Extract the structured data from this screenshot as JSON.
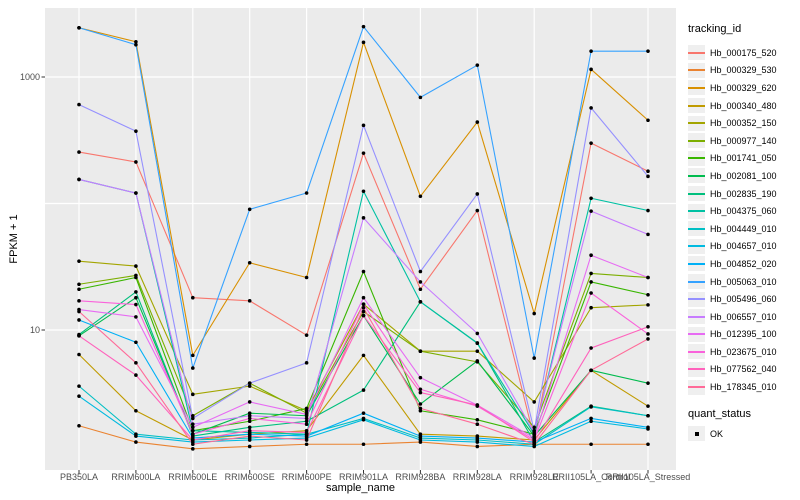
{
  "chart_data": {
    "type": "line",
    "title": "",
    "xlabel": "sample_name",
    "ylabel": "FPKM + 1",
    "y_scale": "log10",
    "y_tick_labels": [
      "1000",
      "10"
    ],
    "y_tick_values": [
      1000,
      10
    ],
    "y_gridline_values": [
      1000,
      100,
      10
    ],
    "ylim": [
      0.78,
      3500
    ],
    "grid": true,
    "legend_position": "right",
    "categories": [
      "PB350LA",
      "RRIM600LA",
      "RRIM600LE",
      "RRIM600SE",
      "RRIM600PE",
      "RRIM901LA",
      "RRIM928BA",
      "RRIM928LA",
      "RRIM928LE",
      "RRII105LA_Control",
      "RRII105LA_Stressed"
    ],
    "series": [
      {
        "name": "Hb_000175_520",
        "color": "#F8766D",
        "values": [
          255,
          213,
          18,
          17,
          9.1,
          250,
          21,
          88,
          1.4,
          300,
          180
        ]
      },
      {
        "name": "Hb_000329_530",
        "color": "#EA8331",
        "values": [
          1.75,
          1.3,
          1.15,
          1.2,
          1.25,
          1.25,
          1.3,
          1.2,
          1.25,
          1.25,
          1.25
        ]
      },
      {
        "name": "Hb_000329_620",
        "color": "#D89000",
        "values": [
          2450,
          1900,
          6.3,
          34,
          26,
          1880,
          114,
          440,
          13.5,
          1150,
          455
        ]
      },
      {
        "name": "Hb_000340_480",
        "color": "#C09B00",
        "values": [
          6.4,
          2.3,
          1.35,
          1.5,
          1.6,
          6.3,
          1.5,
          1.45,
          1.35,
          4.8,
          2.5
        ]
      },
      {
        "name": "Hb_000352_150",
        "color": "#A3A500",
        "values": [
          35,
          32,
          3.1,
          3.6,
          2.3,
          16,
          6.8,
          6.8,
          2.7,
          15,
          15.8
        ]
      },
      {
        "name": "Hb_000977_140",
        "color": "#7CAE00",
        "values": [
          23,
          27,
          2.1,
          3.8,
          2.2,
          14,
          6.8,
          5.6,
          1.7,
          28,
          26
        ]
      },
      {
        "name": "Hb_001741_050",
        "color": "#39B600",
        "values": [
          21,
          26,
          1.6,
          1.9,
          2.4,
          29,
          2.3,
          1.95,
          1.5,
          24,
          19
        ]
      },
      {
        "name": "Hb_002081_100",
        "color": "#00BB4E",
        "values": [
          9,
          18,
          1.5,
          2.2,
          2.1,
          13,
          2.6,
          5.7,
          1.45,
          4.8,
          3.8
        ]
      },
      {
        "name": "Hb_002835_190",
        "color": "#00BF7D",
        "values": [
          9.2,
          20,
          1.45,
          1.7,
          1.9,
          3.35,
          16.7,
          7.9,
          1.3,
          2.5,
          2.1
        ]
      },
      {
        "name": "Hb_004375_060",
        "color": "#00C1A3",
        "values": [
          155,
          121,
          1.6,
          1.55,
          1.5,
          125,
          16.7,
          7.85,
          1.5,
          110,
          88
        ]
      },
      {
        "name": "Hb_004449_010",
        "color": "#00BFC4",
        "values": [
          3.6,
          1.5,
          1.35,
          1.4,
          1.5,
          2.0,
          1.4,
          1.35,
          1.25,
          2.47,
          2.1
        ]
      },
      {
        "name": "Hb_004657_010",
        "color": "#00BAE0",
        "values": [
          3.0,
          1.45,
          1.3,
          1.35,
          1.4,
          1.95,
          1.35,
          1.3,
          1.2,
          1.9,
          1.65
        ]
      },
      {
        "name": "Hb_004852_020",
        "color": "#00B0F6",
        "values": [
          12,
          8,
          1.4,
          1.5,
          1.45,
          2.2,
          1.45,
          1.4,
          1.3,
          2.0,
          1.7
        ]
      },
      {
        "name": "Hb_005063_010",
        "color": "#35A2FF",
        "values": [
          2450,
          1800,
          5.0,
          90,
          121,
          2500,
          690,
          1240,
          6.0,
          1600,
          1600
        ]
      },
      {
        "name": "Hb_005496_060",
        "color": "#9590FF",
        "values": [
          605,
          373,
          2.0,
          3.8,
          5.5,
          415,
          29,
          119,
          1.6,
          570,
          164
        ]
      },
      {
        "name": "Hb_006557_010",
        "color": "#C77CFF",
        "values": [
          155,
          121,
          1.8,
          2.1,
          2.0,
          77,
          24,
          9.4,
          1.55,
          87,
          57
        ]
      },
      {
        "name": "Hb_012395_100",
        "color": "#E76BF3",
        "values": [
          14.5,
          12.7,
          1.7,
          2.7,
          2.15,
          18,
          4.2,
          2.55,
          1.4,
          39,
          26
        ]
      },
      {
        "name": "Hb_023675_010",
        "color": "#FA62DB",
        "values": [
          17,
          15.9,
          1.5,
          2.0,
          1.8,
          16,
          3.4,
          2.5,
          1.35,
          19.6,
          9.3
        ]
      },
      {
        "name": "Hb_077562_040",
        "color": "#FF62BC",
        "values": [
          9,
          4.4,
          1.35,
          1.6,
          1.55,
          13,
          3.2,
          2.55,
          1.3,
          7.2,
          10.6
        ]
      },
      {
        "name": "Hb_178345_010",
        "color": "#FF6A98",
        "values": [
          14,
          5.5,
          1.25,
          1.45,
          1.35,
          15,
          2.4,
          1.8,
          1.25,
          4.8,
          8.5
        ]
      }
    ],
    "legend": {
      "title": "tracking_id",
      "status_title": "quant_status",
      "status_label": "OK",
      "point_color": "#000000"
    },
    "style": {
      "panel_bg": "#EBEBEB",
      "grid_color": "#FFFFFF",
      "tick_color": "#333333",
      "axis_text_color": "#4D4D4D",
      "title_color": "#000000",
      "key_bg": "#EFEFEF",
      "point_color": "#000000"
    }
  }
}
